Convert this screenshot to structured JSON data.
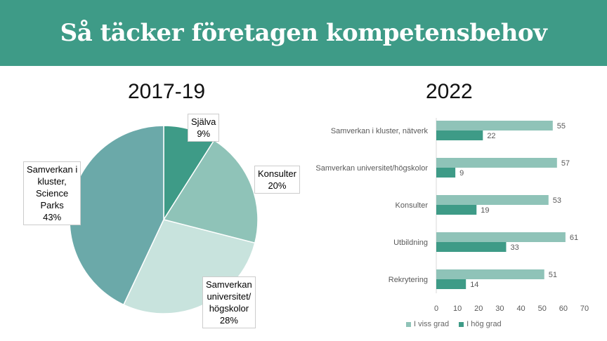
{
  "header": {
    "title": "Så täcker företagen kompetensbehov"
  },
  "pie_title": "2017-19",
  "bar_title": "2022",
  "colors": {
    "header_bg": "#3e9b87",
    "viss_grad": "#8fc3b8",
    "hog_grad": "#3e9b87"
  },
  "chart_data": [
    {
      "type": "pie",
      "title": "2017-19",
      "slices": [
        {
          "label": "Själva",
          "value": 9,
          "display": "Själva\n9%",
          "color": "#3e9b87"
        },
        {
          "label": "Konsulter",
          "value": 20,
          "display": "Konsulter\n20%",
          "color": "#8fc3b8"
        },
        {
          "label": "Samverkan universitet/högskolor",
          "value": 28,
          "display": "Samverkan\nuniversitet/\nhögskolor\n28%",
          "color": "#c8e3dd"
        },
        {
          "label": "Samverkan i kluster, Science Parks",
          "value": 43,
          "display": "Samverkan i\nkluster,\nScience\nParks\n43%",
          "color": "#6ba9a9"
        }
      ]
    },
    {
      "type": "bar",
      "orientation": "horizontal",
      "title": "2022",
      "categories": [
        "Samverkan i kluster, nätverk",
        "Samverkan universitet/högskolor",
        "Konsulter",
        "Utbildning",
        "Rekrytering"
      ],
      "series": [
        {
          "name": "I viss grad",
          "values": [
            55,
            57,
            53,
            61,
            51
          ],
          "color": "#8fc3b8"
        },
        {
          "name": "I hög grad",
          "values": [
            22,
            9,
            19,
            33,
            14
          ],
          "color": "#3e9b87"
        }
      ],
      "xlim": [
        0,
        70
      ],
      "xticks": [
        0,
        10,
        20,
        30,
        40,
        50,
        60,
        70
      ],
      "legend": "bottom"
    }
  ]
}
